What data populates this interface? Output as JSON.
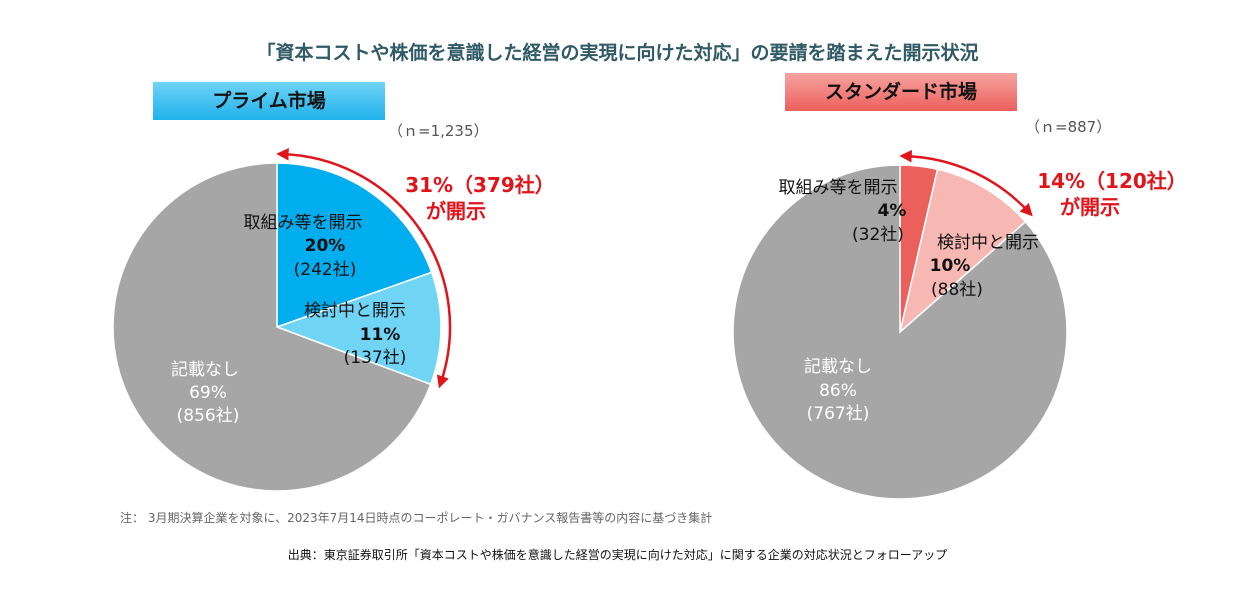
{
  "title": "「資本コストや株価を意識した経営の実現に向けた対応」の要請を踏まえた開示状況",
  "note": "注： 3月期決算企業を対象に、2023年7月14日時点のコーポレート・ガバナンス報告書等の内容に基づき集計",
  "source": "出典：東京証券取引所「資本コストや株価を意識した経営の実現に向けた対応」に関する企業の対応状況とフォローアップ",
  "colors": {
    "prime_disclosed": "#00adef",
    "prime_considering": "#70d5f5",
    "std_disclosed": "#ec605c",
    "std_considering": "#f7b8b4",
    "none": "#a6a6a6",
    "accent_red": "#e0141b"
  },
  "chart_data": [
    {
      "type": "pie",
      "market": "プライム市場",
      "n_label": "（ｎ=1,235）",
      "total": 1235,
      "slices": [
        {
          "label": "取組み等を開示",
          "pct_label": "20%",
          "count_label": "(242社)",
          "value": 242
        },
        {
          "label": "検討中と開示",
          "pct_label": "11%",
          "count_label": "(137社)",
          "value": 137
        },
        {
          "label": "記載なし",
          "pct_label": "69%",
          "count_label": "(856社)",
          "value": 856
        }
      ],
      "callout": {
        "line1": "31%（379社）",
        "line2": "が開示"
      }
    },
    {
      "type": "pie",
      "market": "スタンダード市場",
      "n_label": "（ｎ=887）",
      "total": 887,
      "slices": [
        {
          "label": "取組み等を開示",
          "pct_label": "4%",
          "count_label": "(32社)",
          "value": 32
        },
        {
          "label": "検討中と開示",
          "pct_label": "10%",
          "count_label": "(88社)",
          "value": 88
        },
        {
          "label": "記載なし",
          "pct_label": "86%",
          "count_label": "(767社)",
          "value": 767
        }
      ],
      "callout": {
        "line1": "14%（120社）",
        "line2": "が開示"
      }
    }
  ]
}
